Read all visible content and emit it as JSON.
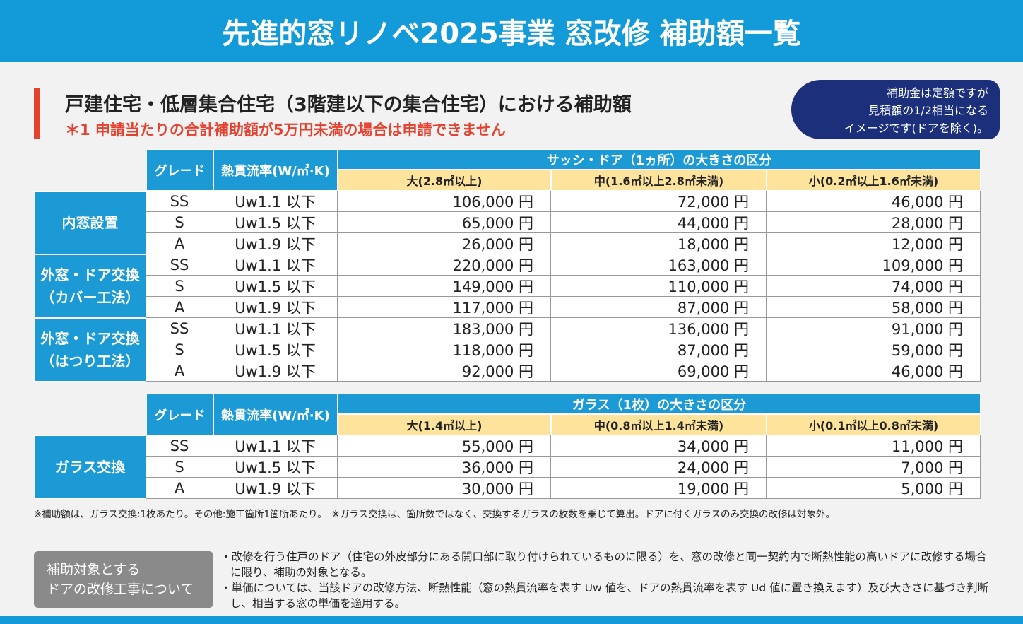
{
  "header": {
    "title": "先進的窓リノベ2025事業 窓改修 補助額一覧"
  },
  "section": {
    "heading": "戸建住宅・低層集合住宅（3階建以下の集合住宅）における補助額",
    "note": "＊1 申請当たりの合計補助額が5万円未満の場合は申請できません"
  },
  "callout": {
    "lines": [
      "補助金は定額ですが",
      "見積額の1/2相当になる",
      "イメージです(ドアを除く)。"
    ]
  },
  "tables": [
    {
      "grade_header": "グレード",
      "uw_header": "熱貫流率(W/㎡·K)",
      "size_header": "サッシ・ドア（1ヵ所）の大きさの区分",
      "sizes": [
        "大(2.8㎡以上)",
        "中(1.6㎡以上2.8㎡未満)",
        "小(0.2㎡以上1.6㎡未満)"
      ],
      "groups": [
        {
          "label": [
            "内窓設置"
          ],
          "rows": [
            [
              "SS",
              "Uw1.1 以下",
              "106,000 円",
              "72,000 円",
              "46,000 円"
            ],
            [
              "S",
              "Uw1.5 以下",
              "65,000 円",
              "44,000 円",
              "28,000 円"
            ],
            [
              "A",
              "Uw1.9 以下",
              "26,000 円",
              "18,000 円",
              "12,000 円"
            ]
          ]
        },
        {
          "label": [
            "外窓・ドア交換",
            "（カバー工法）"
          ],
          "rows": [
            [
              "SS",
              "Uw1.1 以下",
              "220,000 円",
              "163,000 円",
              "109,000 円"
            ],
            [
              "S",
              "Uw1.5 以下",
              "149,000 円",
              "110,000 円",
              "74,000 円"
            ],
            [
              "A",
              "Uw1.9 以下",
              "117,000 円",
              "87,000 円",
              "58,000 円"
            ]
          ]
        },
        {
          "label": [
            "外窓・ドア交換",
            "（はつり工法）"
          ],
          "rows": [
            [
              "SS",
              "Uw1.1 以下",
              "183,000 円",
              "136,000 円",
              "91,000 円"
            ],
            [
              "S",
              "Uw1.5 以下",
              "118,000 円",
              "87,000 円",
              "59,000 円"
            ],
            [
              "A",
              "Uw1.9 以下",
              "92,000 円",
              "69,000 円",
              "46,000 円"
            ]
          ]
        }
      ]
    },
    {
      "grade_header": "グレード",
      "uw_header": "熱貫流率(W/㎡·K)",
      "size_header": "ガラス（1枚）の大きさの区分",
      "sizes": [
        "大(1.4㎡以上)",
        "中(0.8㎡以上1.4㎡未満)",
        "小(0.1㎡以上0.8㎡未満)"
      ],
      "groups": [
        {
          "label": [
            "ガラス交換"
          ],
          "rows": [
            [
              "SS",
              "Uw1.1 以下",
              "55,000 円",
              "34,000 円",
              "11,000 円"
            ],
            [
              "S",
              "Uw1.5 以下",
              "36,000 円",
              "24,000 円",
              "7,000 円"
            ],
            [
              "A",
              "Uw1.9 以下",
              "30,000 円",
              "19,000 円",
              "5,000 円"
            ]
          ]
        }
      ]
    }
  ],
  "footnote": "※補助額は、ガラス交換:1枚あたり。その他:施工箇所1箇所あたり。　※ガラス交換は、箇所数ではなく、交換するガラスの枚数を乗じて算出。ドアに付くガラスのみ交換の改修は対象外。",
  "door_box": {
    "label": [
      "補助対象とする",
      "ドアの改修工事について"
    ],
    "bullets": [
      "・改修を行う住戸のドア（住宅の外皮部分にある開口部に取り付けられているものに限る）を、窓の改修と同一契約内で断熱性能の高いドアに改修する場合に限り、補助の対象となる。",
      "・単価については、当該ドアの改修方法、断熱性能（窓の熱貫流率を表す Uw 値を、ドアの熱貫流率を表す Ud 値に置き換えます）及び大きさに基づき判断し、相当する窓の単価を適用する。"
    ]
  }
}
